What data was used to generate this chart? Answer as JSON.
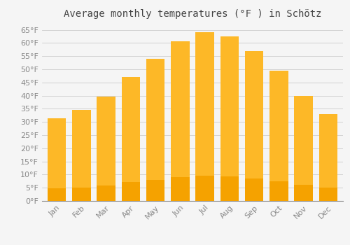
{
  "title": "Average monthly temperatures (°F ) in Schötz",
  "months": [
    "Jan",
    "Feb",
    "Mar",
    "Apr",
    "May",
    "Jun",
    "Jul",
    "Aug",
    "Sep",
    "Oct",
    "Nov",
    "Dec"
  ],
  "values": [
    31.5,
    34.5,
    39.5,
    47,
    54,
    60.5,
    64,
    62.5,
    57,
    49.5,
    40,
    33
  ],
  "bar_color_top": "#FDB827",
  "bar_color_bottom": "#F5A200",
  "ylim": [
    0,
    67
  ],
  "yticks": [
    0,
    5,
    10,
    15,
    20,
    25,
    30,
    35,
    40,
    45,
    50,
    55,
    60,
    65
  ],
  "background_color": "#f5f5f5",
  "grid_color": "#cccccc",
  "title_fontsize": 10,
  "tick_fontsize": 8,
  "tick_color": "#888888",
  "label_color": "#888888",
  "title_color": "#444444"
}
